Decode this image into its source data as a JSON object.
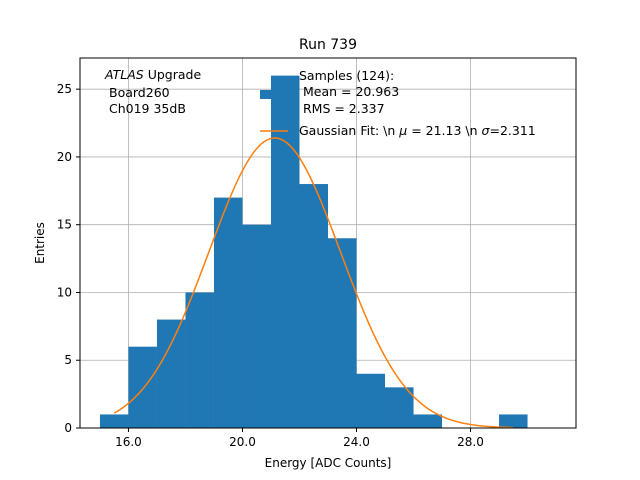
{
  "chart_data": {
    "type": "bar",
    "title": "Run 739",
    "xlabel": "Energy [ADC Counts]",
    "ylabel": "Entries",
    "xlim": [
      14.3,
      31.7
    ],
    "ylim": [
      0,
      27.3
    ],
    "xticks": [
      16.0,
      20.0,
      24.0,
      28.0
    ],
    "xtick_labels": [
      "16.0",
      "20.0",
      "24.0",
      "28.0"
    ],
    "yticks": [
      0,
      5,
      10,
      15,
      20,
      25
    ],
    "ytick_labels": [
      "0",
      "5",
      "10",
      "15",
      "20",
      "25"
    ],
    "grid": true,
    "bin_width": 1.0,
    "bins": [
      {
        "left": 15.0,
        "count": 1
      },
      {
        "left": 16.0,
        "count": 6
      },
      {
        "left": 17.0,
        "count": 8
      },
      {
        "left": 18.0,
        "count": 10
      },
      {
        "left": 19.0,
        "count": 17
      },
      {
        "left": 20.0,
        "count": 15
      },
      {
        "left": 21.0,
        "count": 26
      },
      {
        "left": 22.0,
        "count": 18
      },
      {
        "left": 23.0,
        "count": 14
      },
      {
        "left": 24.0,
        "count": 4
      },
      {
        "left": 25.0,
        "count": 3
      },
      {
        "left": 26.0,
        "count": 1
      },
      {
        "left": 27.0,
        "count": 0
      },
      {
        "left": 28.0,
        "count": 0
      },
      {
        "left": 29.0,
        "count": 1
      }
    ],
    "fit": {
      "type": "gaussian",
      "mu": 21.13,
      "sigma": 2.311,
      "amplitude": 21.4,
      "x_range": [
        15.5,
        29.5
      ]
    },
    "annotation": {
      "italic": "ATLAS",
      "rest": " Upgrade",
      "line2": "Board260",
      "line3": "Ch019 35dB"
    },
    "legend": {
      "position": "top-right",
      "hist_label_lines": [
        "Samples (124):",
        " Mean = 20.963",
        " RMS = 2.337"
      ],
      "fit_label_before_mu": "Gaussian Fit: \\n ",
      "fit_label_mu_symbol": "μ",
      "fit_label_mid": " = 21.13 \\n ",
      "fit_label_sigma_symbol": "σ",
      "fit_label_after": "=2.311"
    },
    "colors": {
      "bars": "#1f77b4",
      "fit": "#ff7f0e",
      "grid": "#b0b0b0"
    }
  }
}
